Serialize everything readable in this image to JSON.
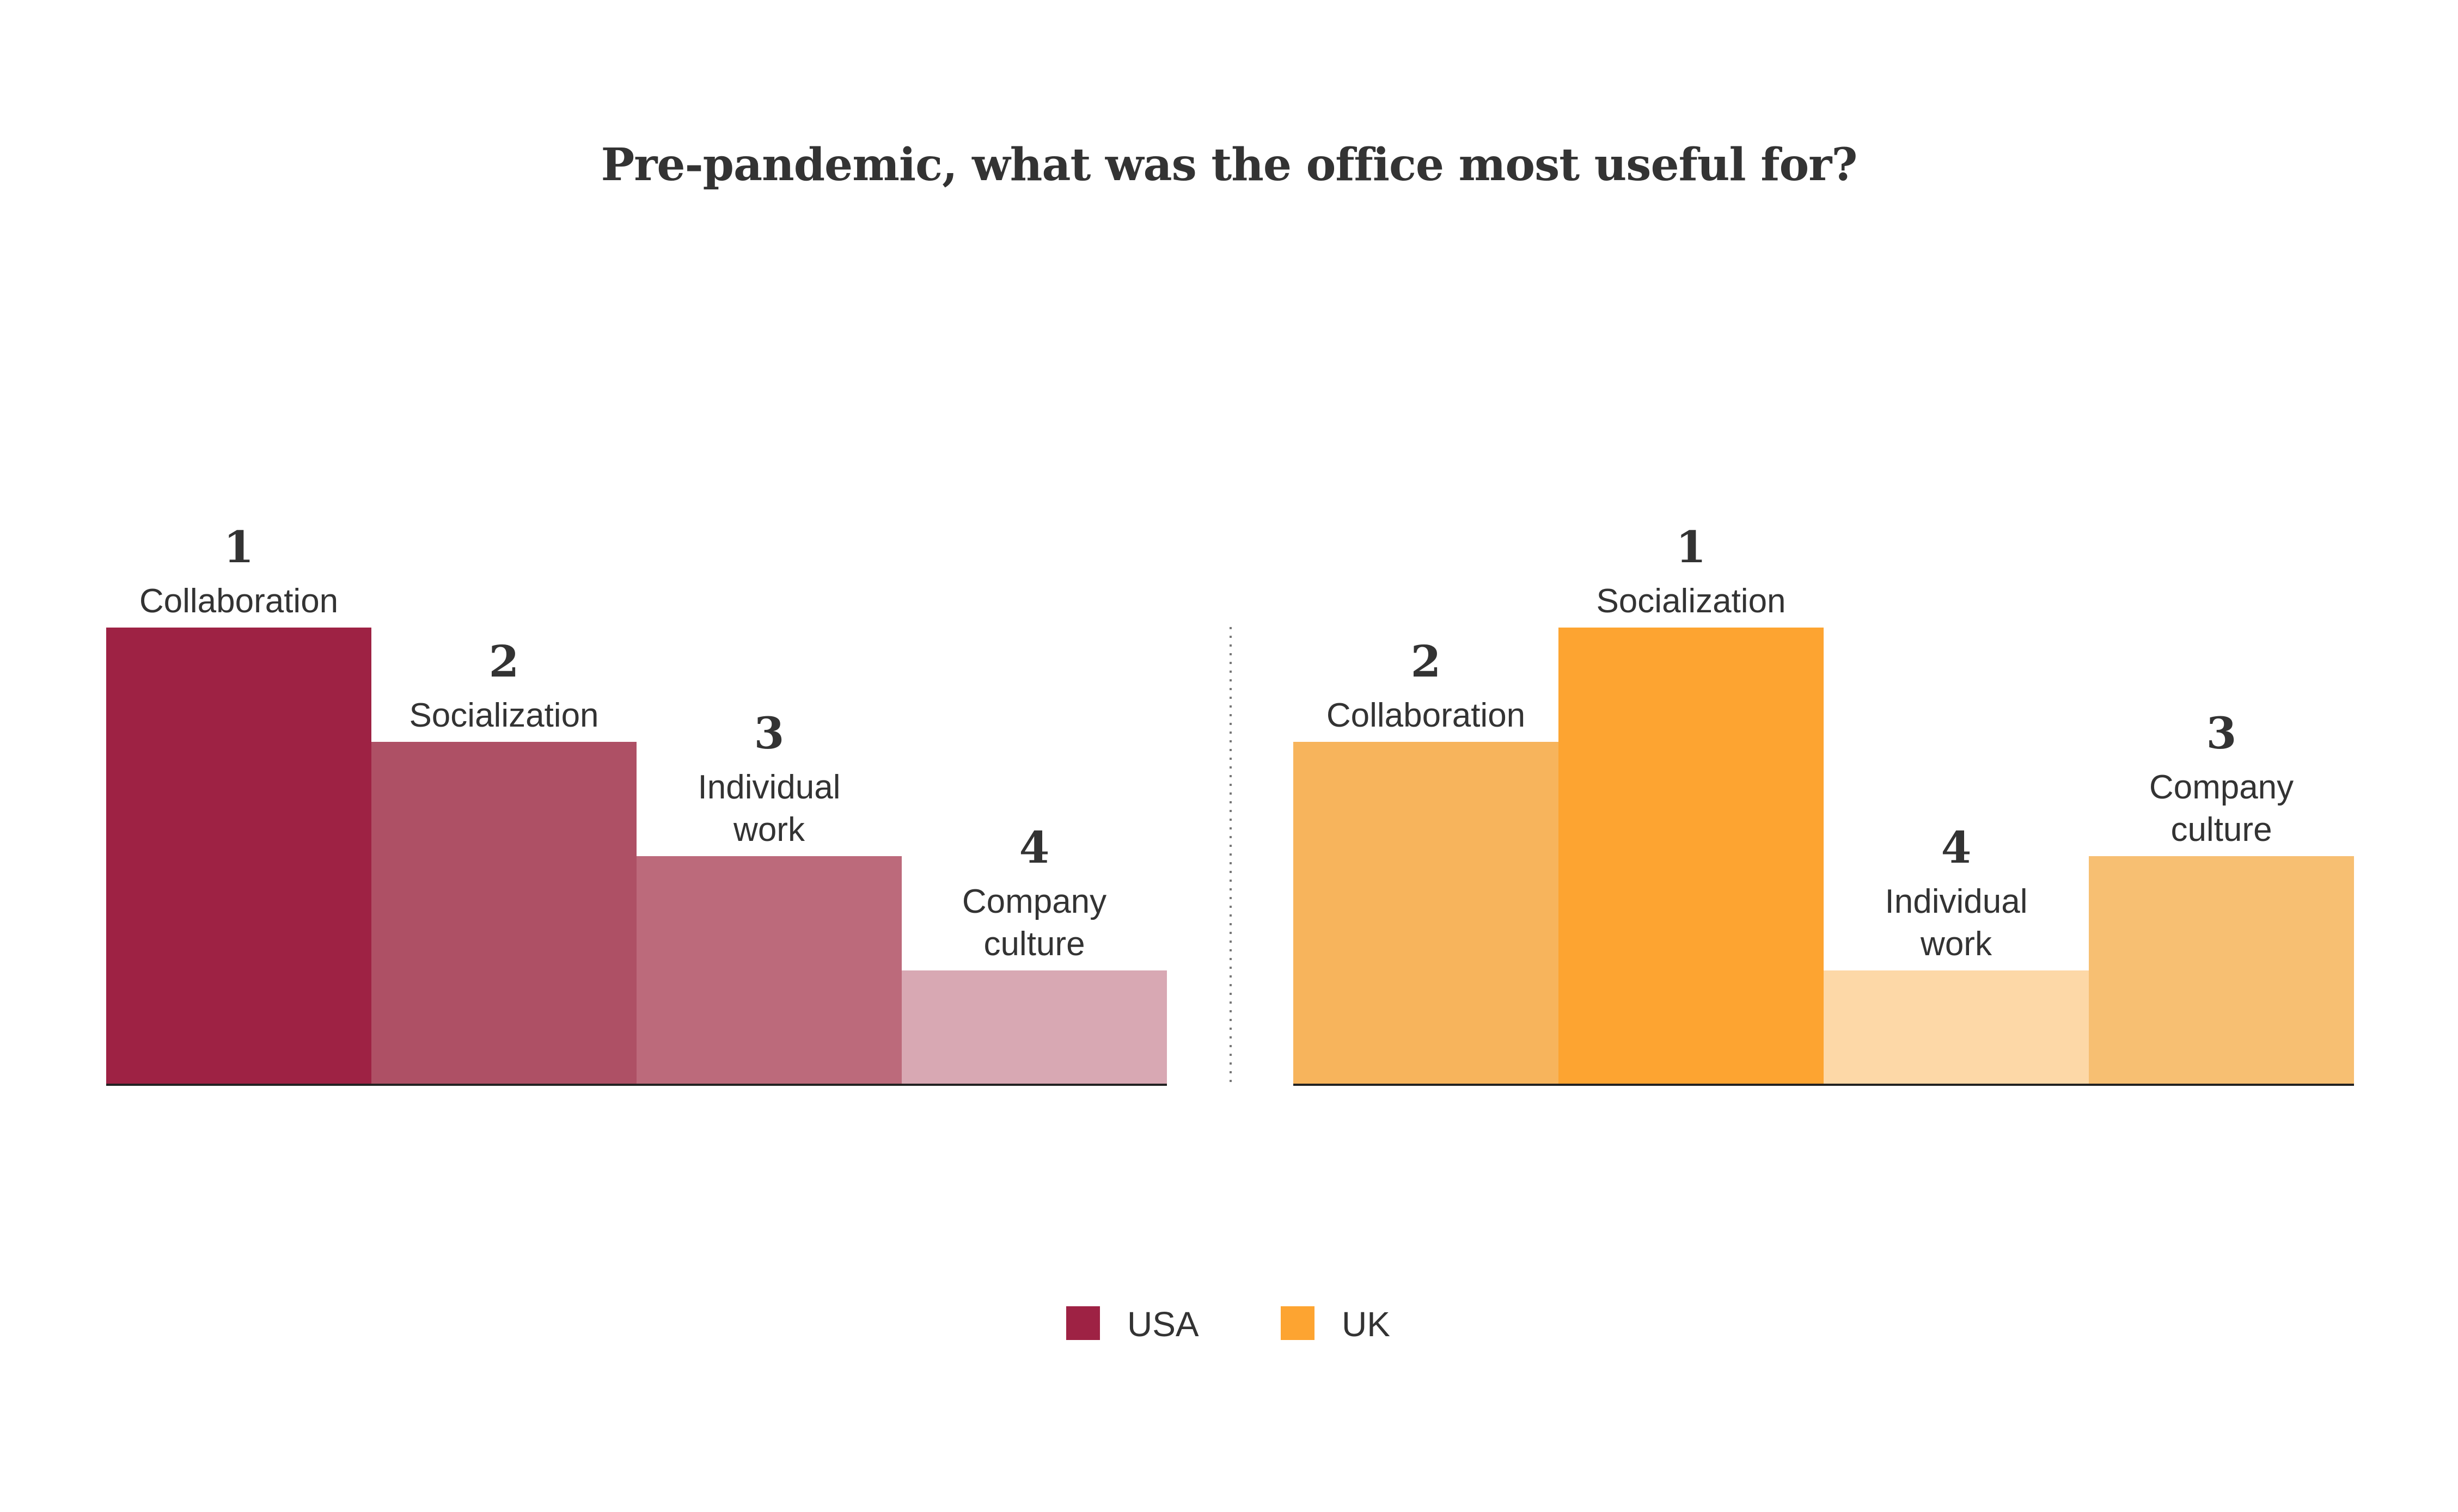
{
  "chart_data": {
    "type": "bar",
    "title": "Pre-pandemic, what was the office most useful for?",
    "value_meaning": "rank (1 = most useful); bar height decreases with rank",
    "groups": [
      {
        "name": "USA",
        "color": "#9e2244",
        "bars": [
          {
            "rank": 1,
            "label": [
              "Collaboration"
            ],
            "color": "#9e2244"
          },
          {
            "rank": 2,
            "label": [
              "Socialization"
            ],
            "color": "#ae5065"
          },
          {
            "rank": 3,
            "label": [
              "Individual",
              "work"
            ],
            "color": "#bc6a7b"
          },
          {
            "rank": 4,
            "label": [
              "Company",
              "culture"
            ],
            "color": "#d8a8b3"
          }
        ]
      },
      {
        "name": "UK",
        "color": "#fda431",
        "bars": [
          {
            "rank": 2,
            "label": [
              "Collaboration"
            ],
            "color": "#f7b45c"
          },
          {
            "rank": 1,
            "label": [
              "Socialization"
            ],
            "color": "#fda431"
          },
          {
            "rank": 4,
            "label": [
              "Individual",
              "work"
            ],
            "color": "#fdd8a7"
          },
          {
            "rank": 3,
            "label": [
              "Company",
              "culture"
            ],
            "color": "#f7bf72"
          }
        ]
      }
    ],
    "legend": [
      {
        "name": "USA",
        "color": "#9e2244"
      },
      {
        "name": "UK",
        "color": "#fda431"
      }
    ],
    "legend_position": "bottom-center",
    "grid": false
  }
}
